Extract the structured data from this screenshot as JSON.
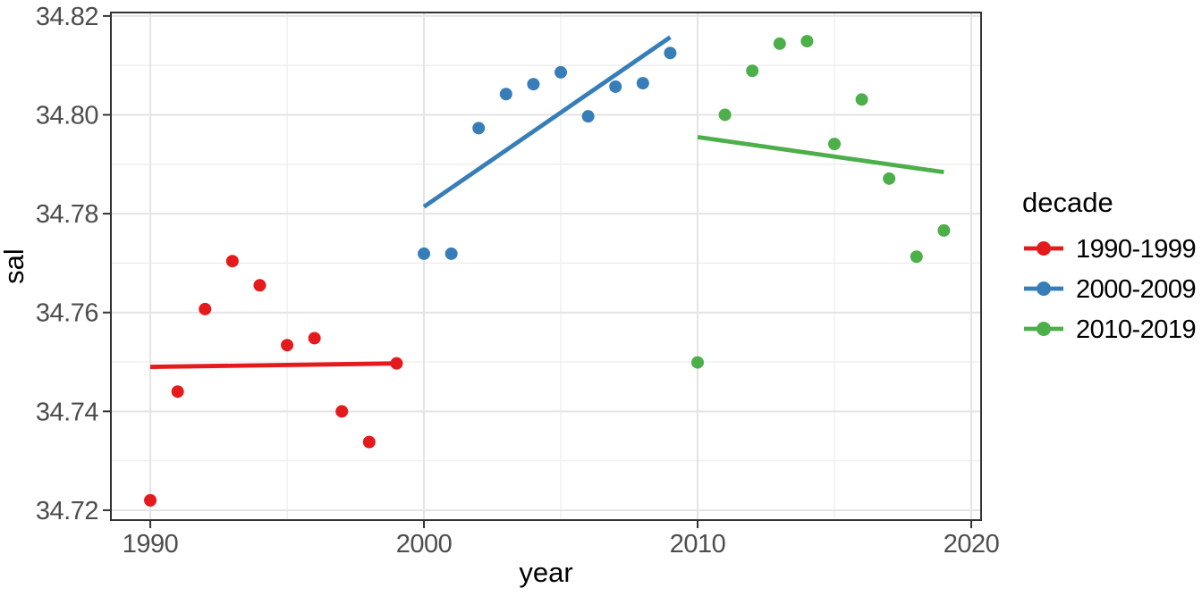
{
  "figure": {
    "background": "#FFFFFF",
    "panel_border_color": "#333333",
    "grid_major_color": "#E4E4E4",
    "grid_minor_color": "#EDEDED",
    "tick_color": "#333333",
    "tick_label_color": "#4D4D4D"
  },
  "chart_data": {
    "type": "scatter",
    "title": "",
    "xlabel": "year",
    "ylabel": "sal",
    "legend_title": "decade",
    "legend_position": "right",
    "grid": true,
    "xlim": [
      1988.56,
      2020.36
    ],
    "ylim": [
      34.718,
      34.8207
    ],
    "x_major_ticks": [
      1990,
      2000,
      2010,
      2020
    ],
    "x_tick_labels": [
      "1990",
      "2000",
      "2010",
      "2020"
    ],
    "x_minor_ticks": [
      1995,
      2005,
      2015
    ],
    "y_major_ticks": [
      34.72,
      34.74,
      34.76,
      34.78,
      34.8,
      34.82
    ],
    "y_tick_labels": [
      "34.72",
      "34.74",
      "34.76",
      "34.78",
      "34.80",
      "34.82"
    ],
    "y_minor_ticks": [
      34.73,
      34.75,
      34.77,
      34.79,
      34.81
    ],
    "series": [
      {
        "name": "1990-1999",
        "color": "#E41A1C",
        "x": [
          1990,
          1991,
          1992,
          1993,
          1994,
          1995,
          1996,
          1997,
          1998,
          1999
        ],
        "y": [
          34.722,
          34.744,
          34.7607,
          34.7704,
          34.7655,
          34.7534,
          34.7548,
          34.74,
          34.7338,
          34.7497
        ],
        "trend": {
          "x": [
            1990,
            1999
          ],
          "y": [
            34.749,
            34.7497
          ]
        }
      },
      {
        "name": "2000-2009",
        "color": "#377EB8",
        "x": [
          2000,
          2001,
          2002,
          2003,
          2004,
          2005,
          2006,
          2007,
          2008,
          2009
        ],
        "y": [
          34.7719,
          34.7719,
          34.7973,
          34.8042,
          34.8062,
          34.8086,
          34.7997,
          34.8057,
          34.8064,
          34.8125
        ],
        "trend": {
          "x": [
            2000,
            2009
          ],
          "y": [
            34.7814,
            34.8157
          ]
        }
      },
      {
        "name": "2010-2019",
        "color": "#4DAF4A",
        "x": [
          2010,
          2011,
          2012,
          2013,
          2014,
          2015,
          2016,
          2017,
          2018,
          2019
        ],
        "y": [
          34.7499,
          34.8,
          34.8089,
          34.8144,
          34.8149,
          34.7941,
          34.8031,
          34.7871,
          34.7713,
          34.7766
        ],
        "trend": {
          "x": [
            2010,
            2019
          ],
          "y": [
            34.7955,
            34.7884
          ]
        }
      }
    ]
  }
}
